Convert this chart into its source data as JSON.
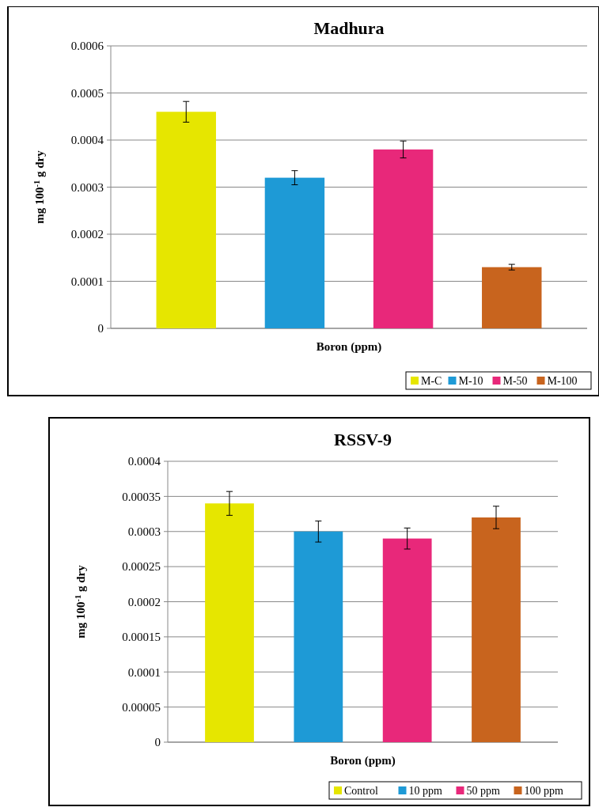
{
  "chart_data": [
    {
      "type": "bar",
      "title": "Madhura",
      "xlabel": "Boron (ppm)",
      "ylabel": "mg 100$^{-1}$ g dry",
      "categories": [
        null
      ],
      "ylim": [
        0,
        0.0006
      ],
      "yticks": [
        0,
        0.0001,
        0.0002,
        0.0003,
        0.0004,
        0.0005,
        0.0006
      ],
      "grid": "y",
      "legend": "bottom right",
      "series": [
        {
          "name": "M-C",
          "color": "#e6e600",
          "values": [
            0.00046
          ],
          "errors": [
            2.2e-05
          ]
        },
        {
          "name": "M-10",
          "color": "#1e9ad6",
          "values": [
            0.00032
          ],
          "errors": [
            1.5e-05
          ]
        },
        {
          "name": "M-50",
          "color": "#e8287a",
          "values": [
            0.00038
          ],
          "errors": [
            1.8e-05
          ]
        },
        {
          "name": "M-100",
          "color": "#c8641e",
          "values": [
            0.00013
          ],
          "errors": [
            6e-06
          ]
        }
      ]
    },
    {
      "type": "bar",
      "title": "RSSV-9",
      "xlabel": "Boron (ppm)",
      "ylabel": "mg 100$^{-1}$ g dry",
      "categories": [
        null
      ],
      "ylim": [
        0,
        0.0004
      ],
      "yticks": [
        0,
        {
          "value": 5e-05,
          "label": "0.00005"
        },
        0.0001,
        0.00015,
        0.0002,
        0.00025,
        0.0003,
        0.00035,
        0.0004
      ],
      "grid": "y",
      "legend": "bottom right",
      "series": [
        {
          "name": "Control",
          "color": "#e6e600",
          "values": [
            0.00034
          ],
          "errors": [
            1.7e-05
          ]
        },
        {
          "name": "10 ppm",
          "color": "#1e9ad6",
          "values": [
            0.0003
          ],
          "errors": [
            1.5e-05
          ]
        },
        {
          "name": "50 ppm",
          "color": "#e8287a",
          "values": [
            0.00029
          ],
          "errors": [
            1.5e-05
          ]
        },
        {
          "name": "100 ppm",
          "color": "#c8641e",
          "values": [
            0.00032
          ],
          "errors": [
            1.6e-05
          ]
        }
      ]
    }
  ]
}
